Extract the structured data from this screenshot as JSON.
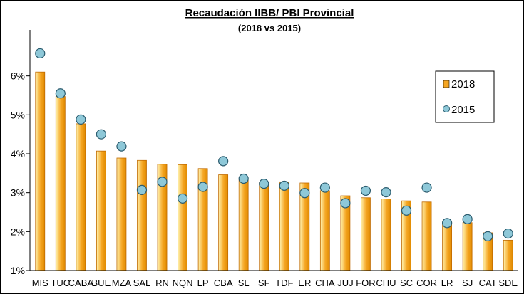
{
  "chart_data": {
    "type": "bar",
    "title": "Recaudación IIBB/ PBI Provincial",
    "subtitle": "(2018 vs 2015)",
    "categories": [
      "MIS",
      "TUC",
      "CABA",
      "BUE",
      "MZA",
      "SAL",
      "RN",
      "NQN",
      "LP",
      "CBA",
      "SL",
      "SF",
      "TDF",
      "ER",
      "CHA",
      "JUJ",
      "FOR",
      "CHU",
      "SC",
      "COR",
      "LR",
      "SJ",
      "CAT",
      "SDE"
    ],
    "series": [
      {
        "name": "2018",
        "kind": "bar",
        "color": "#F5A623",
        "values": [
          6.1,
          5.47,
          4.77,
          4.07,
          3.89,
          3.83,
          3.73,
          3.72,
          3.62,
          3.46,
          3.33,
          3.27,
          3.28,
          3.25,
          3.05,
          2.92,
          2.87,
          2.84,
          2.79,
          2.76,
          2.25,
          2.23,
          1.97,
          1.78
        ]
      },
      {
        "name": "2015",
        "kind": "marker",
        "color": "#8EC8D8",
        "values": [
          6.58,
          5.55,
          4.88,
          4.5,
          4.19,
          3.07,
          3.28,
          2.85,
          3.15,
          3.81,
          3.36,
          3.23,
          3.18,
          2.99,
          3.13,
          2.73,
          3.05,
          3.01,
          2.54,
          3.13,
          2.22,
          2.32,
          1.88,
          1.95
        ]
      }
    ],
    "yticks": [
      "1%",
      "2%",
      "3%",
      "4%",
      "5%",
      "6%"
    ],
    "ylim": [
      1,
      7
    ],
    "legend_position": "right",
    "grid": false
  }
}
